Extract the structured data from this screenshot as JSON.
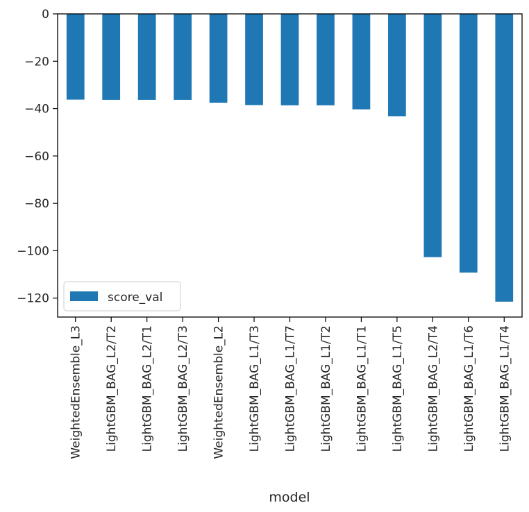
{
  "chart_data": {
    "type": "bar",
    "orientation": "vertical",
    "xlabel": "model",
    "ylabel": "",
    "title": "",
    "ylim": [
      -128,
      0
    ],
    "yticks": [
      0,
      -20,
      -40,
      -60,
      -80,
      -100,
      -120
    ],
    "ytick_labels": [
      "0",
      "−20",
      "−40",
      "−60",
      "−80",
      "−100",
      "−120"
    ],
    "grid": false,
    "legend_position": "lower-left",
    "categories": [
      "WeightedEnsemble_L3",
      "LightGBM_BAG_L2/T2",
      "LightGBM_BAG_L2/T1",
      "LightGBM_BAG_L2/T3",
      "WeightedEnsemble_L2",
      "LightGBM_BAG_L1/T3",
      "LightGBM_BAG_L1/T7",
      "LightGBM_BAG_L1/T2",
      "LightGBM_BAG_L1/T1",
      "LightGBM_BAG_L1/T5",
      "LightGBM_BAG_L2/T4",
      "LightGBM_BAG_L1/T6",
      "LightGBM_BAG_L1/T4"
    ],
    "series": [
      {
        "name": "score_val",
        "color": "#1f77b4",
        "values": [
          -36.2,
          -36.3,
          -36.3,
          -36.3,
          -37.5,
          -38.5,
          -38.6,
          -38.6,
          -40.3,
          -43.2,
          -102.7,
          -109.2,
          -121.5
        ]
      }
    ]
  }
}
